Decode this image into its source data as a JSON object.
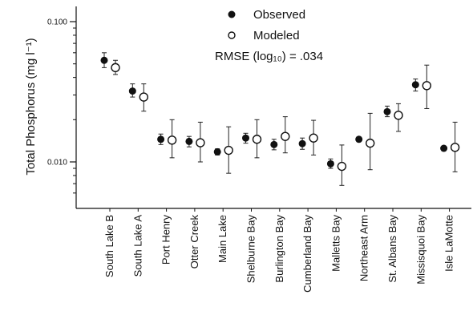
{
  "chart_data": {
    "type": "scatter",
    "title": "",
    "xlabel": "",
    "ylabel": "Total Phosphorus (mg l⁻¹)",
    "yscale": "log",
    "ylim": [
      0.005,
      0.1
    ],
    "yticks": [
      {
        "value": 0.1,
        "label": "0.100"
      },
      {
        "value": 0.01,
        "label": "0.010"
      }
    ],
    "categories": [
      "South Lake B",
      "South Lake A",
      "Port Henry",
      "Otter Creek",
      "Main Lake",
      "Shelburne Bay",
      "Burlington Bay",
      "Cumberland Bay",
      "Malletts Bay",
      "Northeast Arm",
      "St. Albans Bay",
      "Missisquoi Bay",
      "Isle LaMotte"
    ],
    "series": [
      {
        "name": "Observed",
        "marker": "filled-circle",
        "values": [
          0.053,
          0.032,
          0.0145,
          0.014,
          0.0118,
          0.0148,
          0.0133,
          0.0135,
          0.0097,
          0.0145,
          0.0228,
          0.0355,
          0.0125
        ],
        "err_low": [
          0.047,
          0.029,
          0.0133,
          0.0128,
          0.0112,
          0.0136,
          0.0122,
          0.0123,
          0.009,
          0.0145,
          0.021,
          0.032,
          0.0125
        ],
        "err_high": [
          0.06,
          0.036,
          0.0158,
          0.0152,
          0.0124,
          0.016,
          0.0145,
          0.0148,
          0.0105,
          0.0145,
          0.025,
          0.039,
          0.0125
        ]
      },
      {
        "name": "Modeled",
        "marker": "open-circle",
        "values": [
          0.047,
          0.029,
          0.0143,
          0.0137,
          0.0121,
          0.0145,
          0.0152,
          0.0148,
          0.0093,
          0.0136,
          0.0215,
          0.035,
          0.0127
        ],
        "err_low": [
          0.042,
          0.023,
          0.0107,
          0.01,
          0.0083,
          0.0107,
          0.0116,
          0.0112,
          0.0068,
          0.0088,
          0.0165,
          0.024,
          0.0085
        ],
        "err_high": [
          0.053,
          0.036,
          0.02,
          0.0192,
          0.0178,
          0.02,
          0.021,
          0.0198,
          0.0132,
          0.0222,
          0.026,
          0.049,
          0.0192
        ]
      }
    ],
    "legend": {
      "placement": "top-center",
      "observed_label": "Observed",
      "modeled_label": "Modeled",
      "rmse_label": "RMSE (log₁₀) = .034"
    },
    "grid": false
  }
}
